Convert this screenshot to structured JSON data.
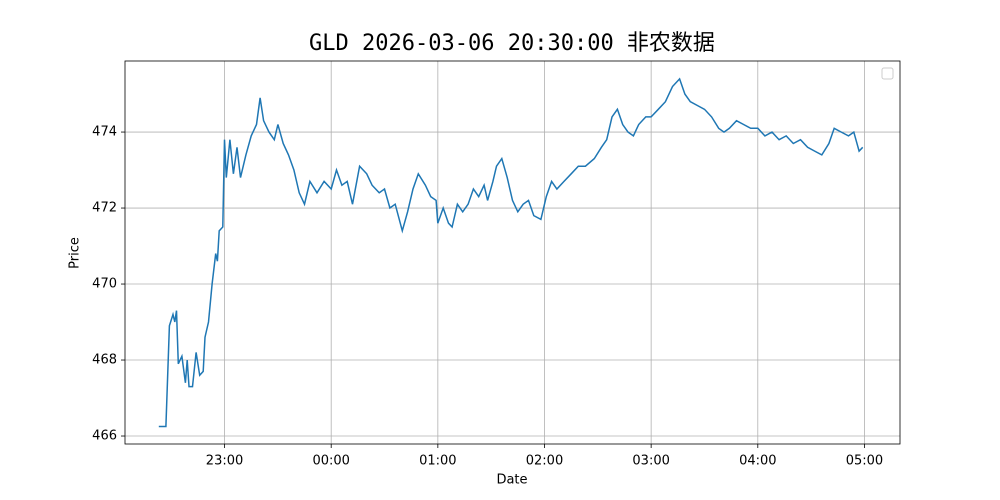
{
  "chart_data": {
    "type": "line",
    "title": "GLD 2026-03-06 20:30:00 非农数据",
    "x_label": "Date",
    "y_label": "Price",
    "color": "#1f77b4",
    "grid": true,
    "legend": "upper right",
    "xlim": [
      "22:04",
      "05:20"
    ],
    "xticks": [
      "23:00",
      "00:00",
      "01:00",
      "02:00",
      "03:00",
      "04:00",
      "05:00"
    ],
    "ylim": [
      465.79,
      475.87
    ],
    "yticks": [
      466,
      468,
      470,
      472,
      474
    ],
    "x": [
      "22:23",
      "22:27",
      "22:29",
      "22:31",
      "22:32",
      "22:33",
      "22:34",
      "22:36",
      "22:38",
      "22:39",
      "22:40",
      "22:42",
      "22:44",
      "22:46",
      "22:48",
      "22:49",
      "22:51",
      "22:53",
      "22:55",
      "22:56",
      "22:57",
      "22:59",
      "23:00",
      "23:01",
      "23:03",
      "23:05",
      "23:07",
      "23:09",
      "23:12",
      "23:15",
      "23:18",
      "23:20",
      "23:22",
      "23:25",
      "23:28",
      "23:30",
      "23:33",
      "23:36",
      "23:39",
      "23:42",
      "23:45",
      "23:48",
      "23:52",
      "23:56",
      "00:00",
      "00:03",
      "00:06",
      "00:09",
      "00:12",
      "00:16",
      "00:20",
      "00:23",
      "00:27",
      "00:30",
      "00:33",
      "00:36",
      "00:40",
      "00:43",
      "00:46",
      "00:49",
      "00:53",
      "00:56",
      "00:59",
      "01:00",
      "01:03",
      "01:06",
      "01:08",
      "01:11",
      "01:14",
      "01:17",
      "01:20",
      "01:23",
      "01:26",
      "01:28",
      "01:31",
      "01:33",
      "01:36",
      "01:39",
      "01:42",
      "01:45",
      "01:48",
      "01:51",
      "01:54",
      "01:58",
      "02:01",
      "02:04",
      "02:07",
      "02:11",
      "02:15",
      "02:19",
      "02:23",
      "02:28",
      "02:32",
      "02:35",
      "02:38",
      "02:41",
      "02:44",
      "02:47",
      "02:50",
      "02:53",
      "02:57",
      "03:00",
      "03:04",
      "03:08",
      "03:12",
      "03:16",
      "03:19",
      "03:22",
      "03:26",
      "03:30",
      "03:34",
      "03:38",
      "03:41",
      "03:44",
      "03:48",
      "03:52",
      "03:56",
      "04:00",
      "04:04",
      "04:08",
      "04:12",
      "04:16",
      "04:20",
      "04:24",
      "04:28",
      "04:32",
      "04:36",
      "04:40",
      "04:43",
      "04:47",
      "04:51",
      "04:54",
      "04:57",
      "04:59"
    ],
    "values": [
      466.25,
      466.25,
      468.9,
      469.2,
      469.0,
      469.3,
      467.9,
      468.1,
      467.4,
      468.0,
      467.3,
      467.3,
      468.2,
      467.6,
      467.7,
      468.6,
      469.0,
      470.0,
      470.8,
      470.6,
      471.4,
      471.5,
      473.8,
      472.8,
      473.8,
      472.9,
      473.6,
      472.8,
      473.4,
      473.9,
      474.2,
      474.9,
      474.3,
      474.0,
      473.8,
      474.2,
      473.7,
      473.4,
      473.0,
      472.4,
      472.1,
      472.7,
      472.4,
      472.7,
      472.5,
      473.0,
      472.6,
      472.7,
      472.1,
      473.1,
      472.9,
      472.6,
      472.4,
      472.5,
      472.0,
      472.1,
      471.4,
      471.9,
      472.5,
      472.9,
      472.6,
      472.3,
      472.2,
      471.6,
      472.0,
      471.6,
      471.5,
      472.1,
      471.9,
      472.1,
      472.5,
      472.3,
      472.6,
      472.2,
      472.7,
      473.1,
      473.3,
      472.8,
      472.2,
      471.9,
      472.1,
      472.2,
      471.8,
      471.7,
      472.3,
      472.7,
      472.5,
      472.7,
      472.9,
      473.1,
      473.1,
      473.3,
      473.6,
      473.8,
      474.4,
      474.6,
      474.2,
      474.0,
      473.9,
      474.2,
      474.4,
      474.4,
      474.6,
      474.8,
      475.2,
      475.4,
      475.0,
      474.8,
      474.7,
      474.6,
      474.4,
      474.1,
      474.0,
      474.1,
      474.3,
      474.2,
      474.1,
      474.1,
      473.9,
      474.0,
      473.8,
      473.9,
      473.7,
      473.8,
      473.6,
      473.5,
      473.4,
      473.7,
      474.1,
      474.0,
      473.9,
      474.0,
      473.5,
      473.6
    ]
  }
}
